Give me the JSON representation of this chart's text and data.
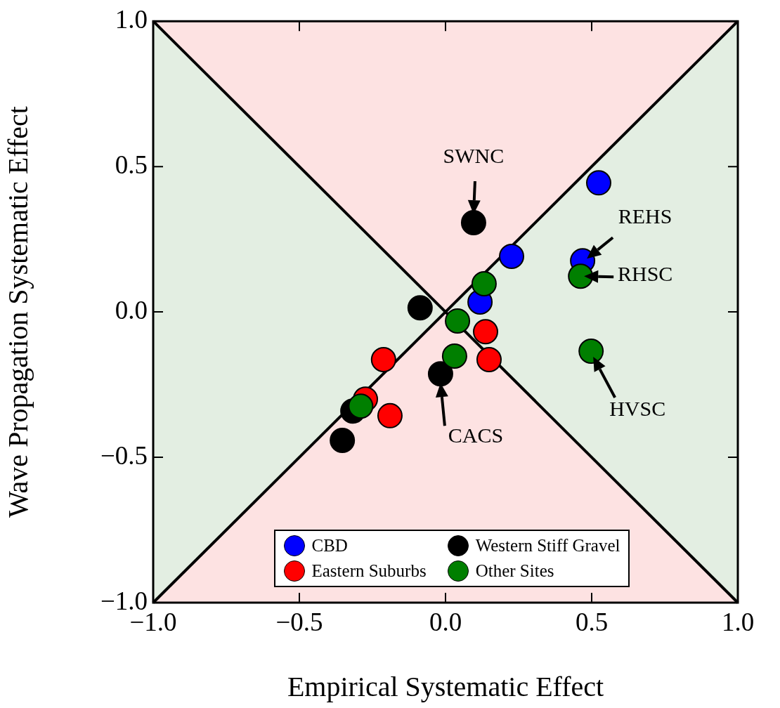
{
  "chart_data": {
    "type": "scatter",
    "xlabel": "Empirical Systematic Effect",
    "ylabel": "Wave Propagation Systematic Effect",
    "xlim": [
      -1,
      1
    ],
    "ylim": [
      -1,
      1
    ],
    "xticks": [
      {
        "value": -1,
        "label": "−1.0"
      },
      {
        "value": -0.5,
        "label": "−0.5"
      },
      {
        "value": 0,
        "label": "0.0"
      },
      {
        "value": 0.5,
        "label": "0.5"
      },
      {
        "value": 1,
        "label": "1.0"
      }
    ],
    "yticks": [
      {
        "value": -1,
        "label": "−1.0"
      },
      {
        "value": -0.5,
        "label": "−0.5"
      },
      {
        "value": 0,
        "label": "0.0"
      },
      {
        "value": 0.5,
        "label": "0.5"
      },
      {
        "value": 1,
        "label": "1.0"
      }
    ],
    "grid": false,
    "legend": "bottom",
    "marker": "circle",
    "series": [
      {
        "name": "CBD",
        "color": "#0000ff",
        "x": [
          0.524,
          0.226,
          0.118,
          0.469
        ],
        "values": [
          0.444,
          0.191,
          0.034,
          0.176
        ]
      },
      {
        "name": "Western Stiff Gravel",
        "color": "#000000",
        "x": [
          0.096,
          -0.087,
          -0.017,
          -0.317,
          -0.353
        ],
        "values": [
          0.307,
          0.014,
          -0.213,
          -0.341,
          -0.442
        ]
      },
      {
        "name": "Eastern Suburbs",
        "color": "#ff0000",
        "x": [
          -0.212,
          -0.274,
          -0.19,
          0.137,
          0.149
        ],
        "values": [
          -0.164,
          -0.3,
          -0.357,
          -0.068,
          -0.164
        ]
      },
      {
        "name": "Other Sites",
        "color": "#007f00",
        "x": [
          0.132,
          0.041,
          0.031,
          -0.29,
          0.462,
          0.498
        ],
        "values": [
          0.097,
          -0.031,
          -0.152,
          -0.324,
          0.123,
          -0.135
        ]
      },
      {
        "type": "line",
        "marker": "none",
        "color": "#000000",
        "x": [
          -1,
          1
        ],
        "values": [
          -1,
          1
        ]
      },
      {
        "type": "line",
        "marker": "none",
        "color": "#000000",
        "x": [
          -1,
          1
        ],
        "values": [
          1,
          -1
        ]
      }
    ],
    "annotations": [
      {
        "text": "SWNC",
        "x": 0.096,
        "y": 0.307
      },
      {
        "text": "CACS",
        "x": -0.017,
        "y": -0.213
      },
      {
        "text": "REHS",
        "x": 0.469,
        "y": 0.176
      },
      {
        "text": "RHSC",
        "x": 0.462,
        "y": 0.123
      },
      {
        "text": "HVSC",
        "x": 0.498,
        "y": -0.135
      }
    ]
  }
}
